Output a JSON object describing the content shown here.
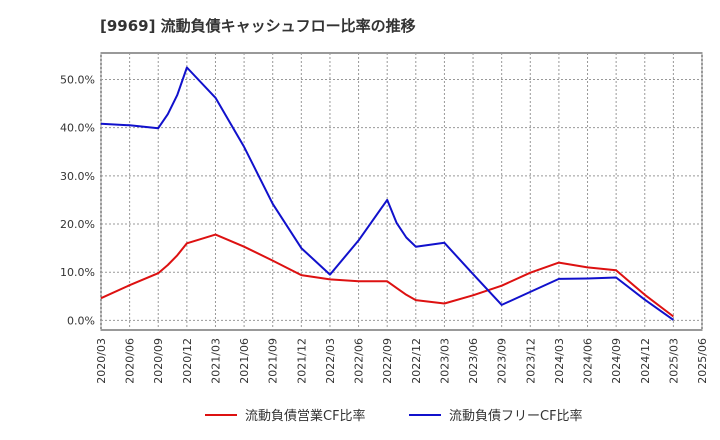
{
  "chart_data": {
    "type": "line",
    "title": "[9969]  流動負債キャッシュフロー比率の推移",
    "x_ticks": [
      "2020/03",
      "2020/06",
      "2020/09",
      "2020/12",
      "2021/03",
      "2021/06",
      "2021/09",
      "2021/12",
      "2022/03",
      "2022/06",
      "2022/09",
      "2022/12",
      "2023/03",
      "2023/06",
      "2023/09",
      "2023/12",
      "2024/03",
      "2024/06",
      "2024/09",
      "2024/12",
      "2025/03",
      "2025/06"
    ],
    "y_ticks": [
      "0.0%",
      "10.0%",
      "20.0%",
      "30.0%",
      "40.0%",
      "50.0%"
    ],
    "ylim": [
      -2,
      55.5
    ],
    "grid": true,
    "legend_position": "bottom",
    "series": [
      {
        "name": "流動負債営業CF比率",
        "color": "#dd1111",
        "points": [
          {
            "x": "2020/03",
            "y": 4.6
          },
          {
            "x": "2020/06",
            "y": 7.3
          },
          {
            "x": "2020/09",
            "y": 9.8
          },
          {
            "x": "2020/10",
            "y": 11.5
          },
          {
            "x": "2020/11",
            "y": 13.5
          },
          {
            "x": "2020/12",
            "y": 16.0
          },
          {
            "x": "2021/03",
            "y": 17.8
          },
          {
            "x": "2021/06",
            "y": 15.3
          },
          {
            "x": "2021/09",
            "y": 12.4
          },
          {
            "x": "2021/12",
            "y": 9.4
          },
          {
            "x": "2022/03",
            "y": 8.5
          },
          {
            "x": "2022/06",
            "y": 8.1
          },
          {
            "x": "2022/09",
            "y": 8.1
          },
          {
            "x": "2022/10",
            "y": 6.7
          },
          {
            "x": "2022/11",
            "y": 5.3
          },
          {
            "x": "2022/12",
            "y": 4.2
          },
          {
            "x": "2023/03",
            "y": 3.5
          },
          {
            "x": "2023/06",
            "y": 5.2
          },
          {
            "x": "2023/09",
            "y": 7.2
          },
          {
            "x": "2023/12",
            "y": 9.9
          },
          {
            "x": "2024/03",
            "y": 12.0
          },
          {
            "x": "2024/06",
            "y": 11.0
          },
          {
            "x": "2024/09",
            "y": 10.4
          },
          {
            "x": "2024/12",
            "y": 5.3
          },
          {
            "x": "2025/03",
            "y": 0.8
          }
        ]
      },
      {
        "name": "流動負債フリーCF比率",
        "color": "#1111cc",
        "points": [
          {
            "x": "2020/03",
            "y": 40.8
          },
          {
            "x": "2020/06",
            "y": 40.5
          },
          {
            "x": "2020/09",
            "y": 39.9
          },
          {
            "x": "2020/10",
            "y": 42.8
          },
          {
            "x": "2020/11",
            "y": 46.8
          },
          {
            "x": "2020/12",
            "y": 52.5
          },
          {
            "x": "2021/03",
            "y": 46.2
          },
          {
            "x": "2021/06",
            "y": 36.0
          },
          {
            "x": "2021/09",
            "y": 24.2
          },
          {
            "x": "2021/12",
            "y": 15.0
          },
          {
            "x": "2022/03",
            "y": 9.5
          },
          {
            "x": "2022/06",
            "y": 16.6
          },
          {
            "x": "2022/09",
            "y": 25.0
          },
          {
            "x": "2022/10",
            "y": 20.2
          },
          {
            "x": "2022/11",
            "y": 17.2
          },
          {
            "x": "2022/12",
            "y": 15.3
          },
          {
            "x": "2023/03",
            "y": 16.1
          },
          {
            "x": "2023/06",
            "y": 9.6
          },
          {
            "x": "2023/09",
            "y": 3.2
          },
          {
            "x": "2023/12",
            "y": 5.9
          },
          {
            "x": "2024/03",
            "y": 8.6
          },
          {
            "x": "2024/06",
            "y": 8.7
          },
          {
            "x": "2024/09",
            "y": 8.9
          },
          {
            "x": "2024/12",
            "y": 4.3
          },
          {
            "x": "2025/03",
            "y": 0.1
          }
        ]
      }
    ]
  }
}
